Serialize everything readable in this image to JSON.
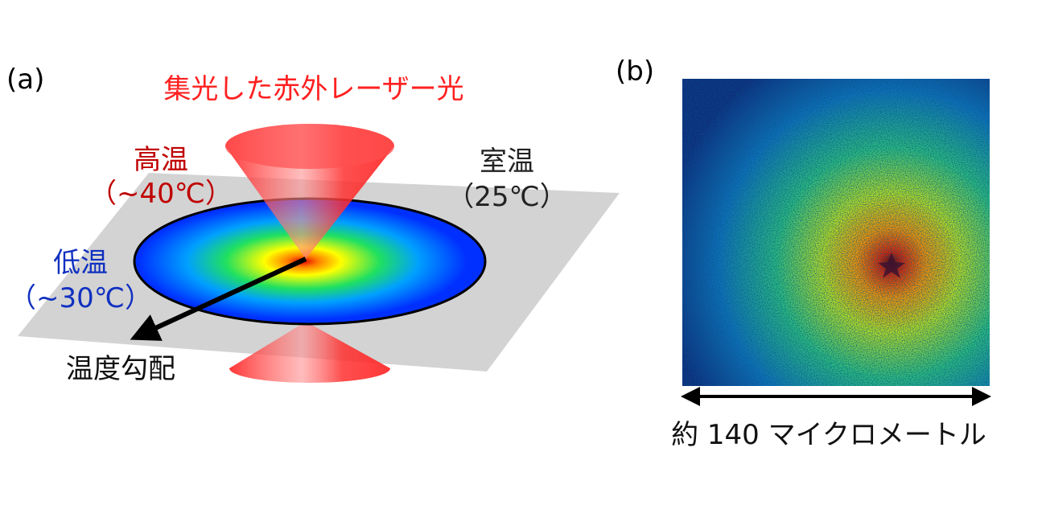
{
  "panel_a": {
    "label": "(a)",
    "laser": "集光した赤外レーザー光",
    "hot": {
      "name": "高温",
      "temp": "（~40℃）"
    },
    "room": {
      "name": "室温",
      "temp": "（25℃）"
    },
    "low": {
      "name": "低温",
      "temp": "（~30℃）"
    },
    "gradient": "温度勾配"
  },
  "panel_b": {
    "label": "(b)",
    "scale": "約 140 マイクロメートル"
  }
}
